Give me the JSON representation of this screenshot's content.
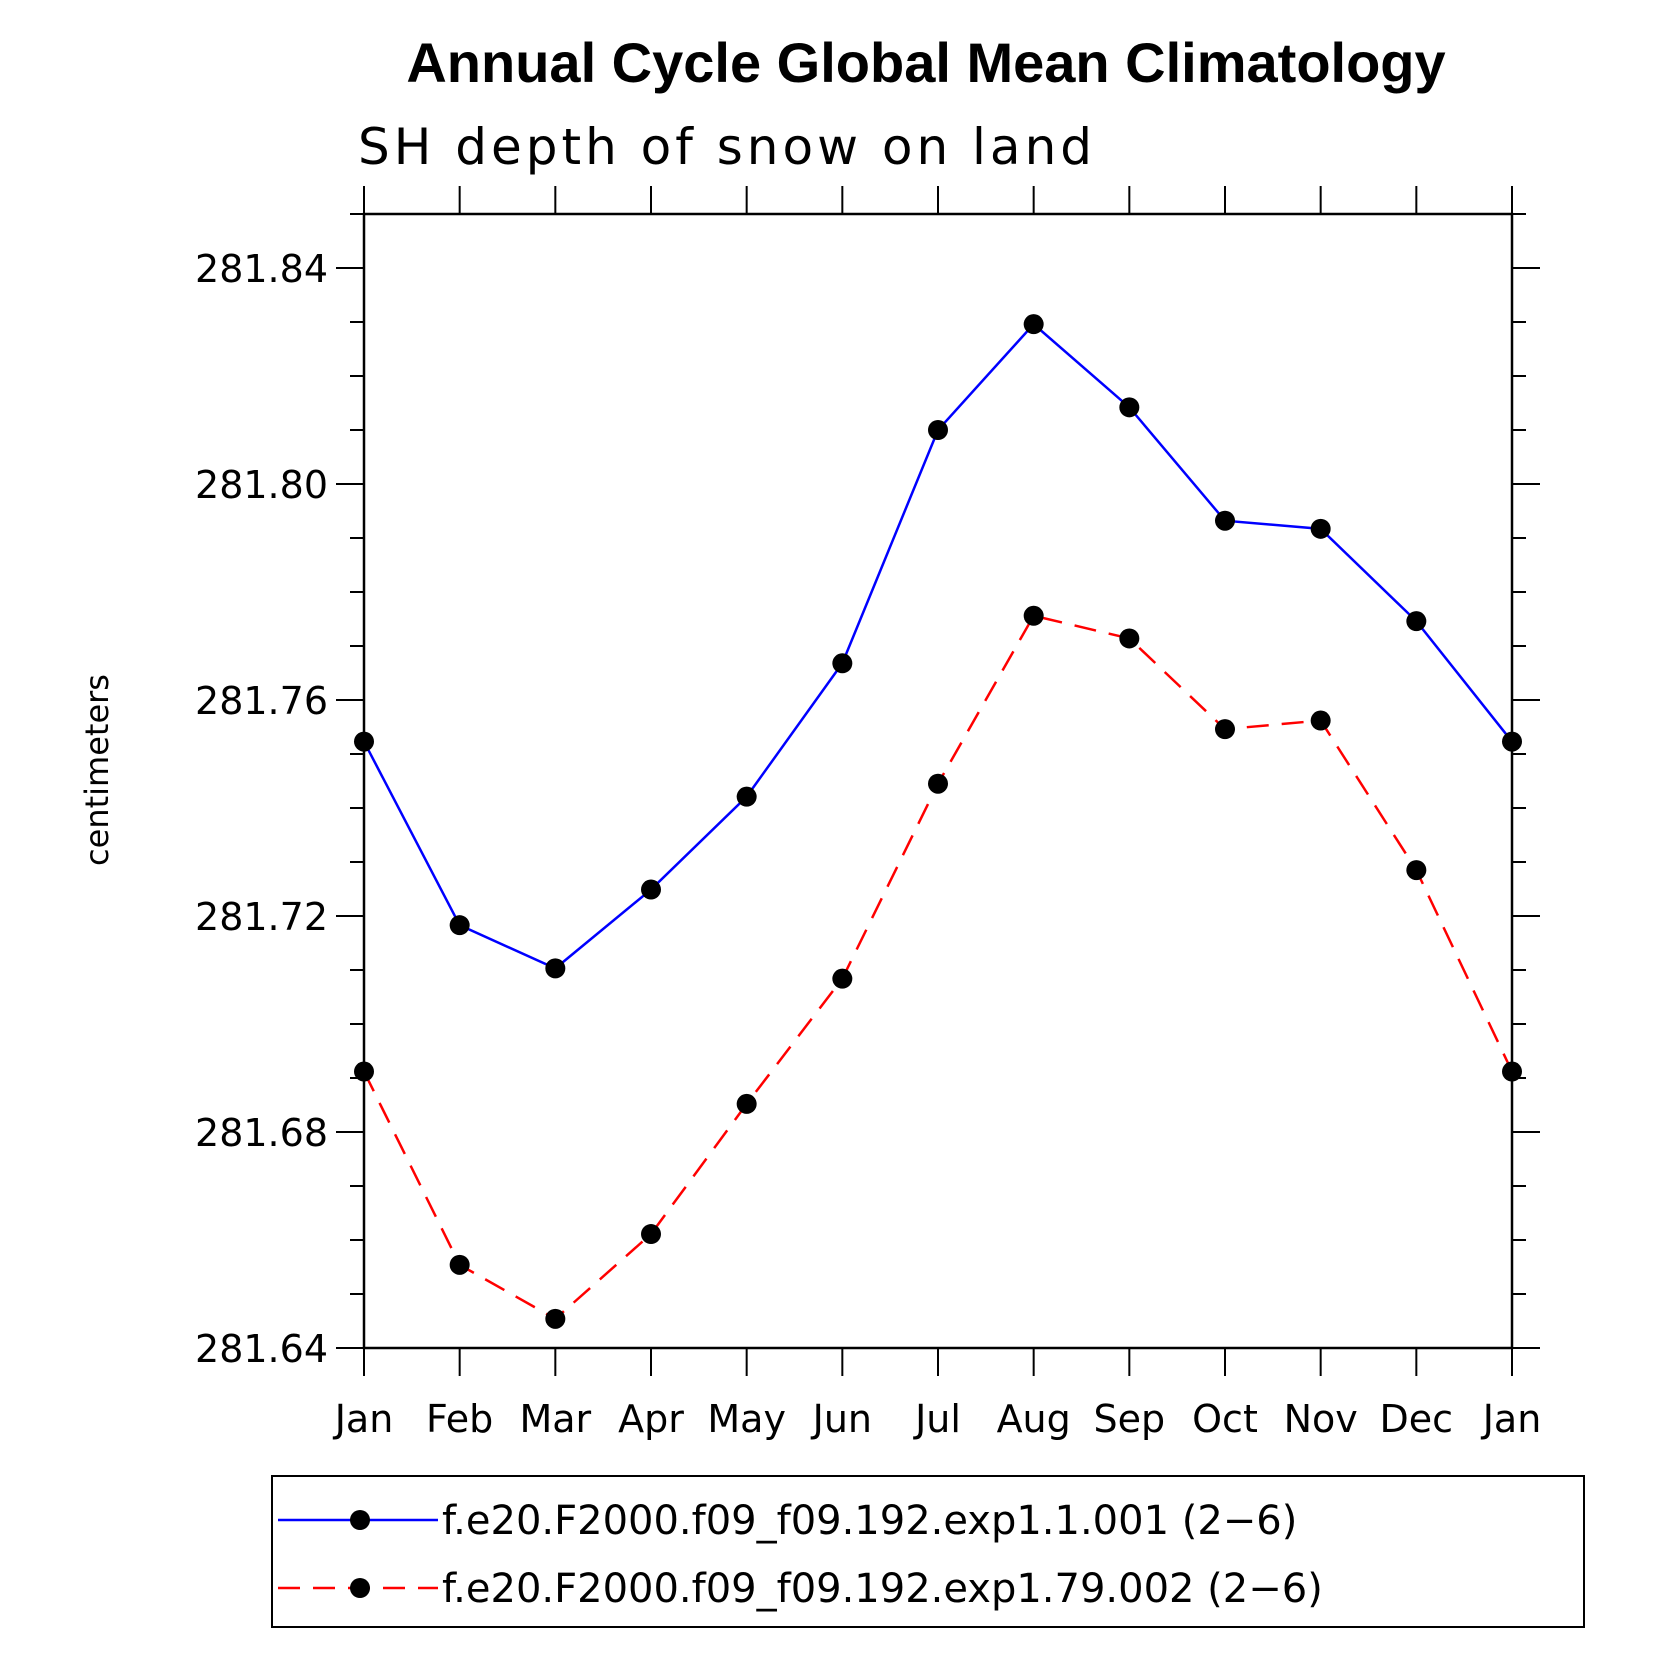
{
  "chart_data": {
    "type": "line",
    "title": "Annual Cycle Global Mean Climatology",
    "subtitle": "SH depth of snow on land",
    "xlabel": "",
    "ylabel": "centimeters",
    "categories": [
      "Jan",
      "Feb",
      "Mar",
      "Apr",
      "May",
      "Jun",
      "Jul",
      "Aug",
      "Sep",
      "Oct",
      "Nov",
      "Dec",
      "Jan"
    ],
    "ylim": [
      281.64,
      281.85
    ],
    "yticks": [
      "281.64",
      "281.68",
      "281.72",
      "281.76",
      "281.80",
      "281.84"
    ],
    "legend_position": "bottom",
    "series": [
      {
        "name": "f.e20.F2000.f09_f09.192.exp1.1.001 (2−6)",
        "color": "#0000ff",
        "dash": "solid",
        "marker": "circle",
        "values": [
          281.7523,
          281.7183,
          281.7103,
          281.7249,
          281.7421,
          281.7668,
          281.81,
          281.8296,
          281.8142,
          281.7932,
          281.7917,
          281.7746,
          281.7523
        ]
      },
      {
        "name": "f.e20.F2000.f09_f09.192.exp1.79.002 (2−6)",
        "color": "#ff0000",
        "dash": "dashed",
        "marker": "circle",
        "values": [
          281.6912,
          281.6554,
          281.6454,
          281.6611,
          281.6852,
          281.7084,
          281.7445,
          281.7756,
          281.7714,
          281.7546,
          281.7562,
          281.7285,
          281.6912
        ]
      }
    ]
  }
}
